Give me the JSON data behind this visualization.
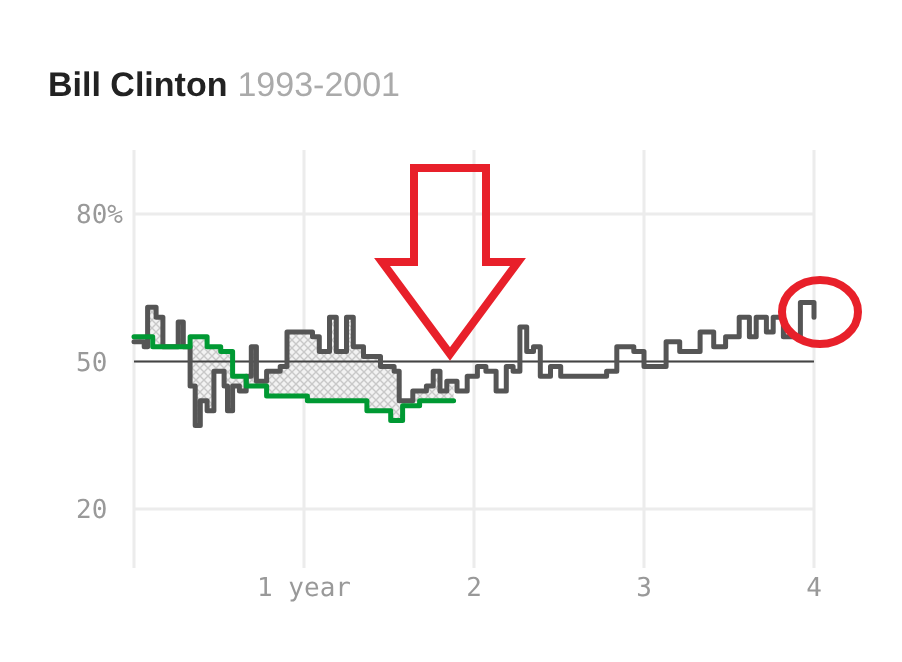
{
  "chart_data": {
    "type": "step",
    "title": "Bill Clinton",
    "subtitle": "1993-2001",
    "xlim": [
      0,
      4
    ],
    "ylim": [
      8,
      93
    ],
    "xticks": [
      {
        "value": 0,
        "label": null
      },
      {
        "value": 1,
        "label": "1 year"
      },
      2,
      3,
      4
    ],
    "yticks": [
      {
        "value": 20,
        "label": "20"
      },
      {
        "value": 50,
        "label": "50"
      },
      {
        "value": 80,
        "label": "80%"
      }
    ],
    "grid": true,
    "ref_lines": [
      {
        "axis": "y",
        "value": 50,
        "label": null,
        "color": "#444444"
      }
    ],
    "series": [
      {
        "color": "#555555",
        "x": [
          0,
          0.06,
          0.08,
          0.13,
          0.17,
          0.26,
          0.29,
          0.33,
          0.36,
          0.39,
          0.43,
          0.47,
          0.53,
          0.55,
          0.58,
          0.62,
          0.66,
          0.69,
          0.72,
          0.78,
          0.86,
          0.9,
          0.98,
          1.05,
          1.09,
          1.15,
          1.19,
          1.25,
          1.29,
          1.35,
          1.41,
          1.45,
          1.53,
          1.56,
          1.64,
          1.72,
          1.76,
          1.8,
          1.84,
          1.9,
          1.96,
          2.02,
          2.07,
          2.13,
          2.19,
          2.23,
          2.27,
          2.31,
          2.35,
          2.39,
          2.45,
          2.51,
          2.62,
          2.7,
          2.78,
          2.84,
          2.94,
          3,
          3.09,
          3.13,
          3.21,
          3.33,
          3.41,
          3.48,
          3.56,
          3.62,
          3.66,
          3.72,
          3.76,
          3.82,
          3.88,
          3.92,
          3.96,
          4
        ],
        "values": [
          54,
          53,
          61,
          59,
          53,
          58,
          53,
          45,
          37,
          42,
          40,
          48,
          45,
          40,
          45,
          44,
          47,
          53,
          46,
          48,
          49,
          56,
          56,
          55,
          52,
          59,
          52,
          59,
          53,
          51,
          51,
          49,
          48,
          42,
          44,
          45,
          48,
          44,
          46,
          44,
          47,
          49,
          48,
          44,
          49,
          48,
          57,
          52,
          53,
          47,
          49,
          47,
          47,
          47,
          48,
          53,
          52,
          49,
          49,
          54,
          52,
          56,
          53,
          55,
          59,
          55,
          59,
          56,
          59,
          55,
          55,
          62,
          62,
          59
        ]
      },
      {
        "color": "#009933",
        "x": [
          0,
          0.11,
          0.23,
          0.33,
          0.43,
          0.51,
          0.58,
          0.66,
          0.78,
          0.9,
          1.02,
          1.13,
          1.25,
          1.37,
          1.51,
          1.58,
          1.68,
          1.88
        ],
        "values": [
          55,
          53,
          53,
          55,
          53,
          52,
          47,
          45,
          43,
          43,
          42,
          42,
          42,
          40,
          38,
          41,
          42,
          42
        ]
      }
    ]
  }
}
